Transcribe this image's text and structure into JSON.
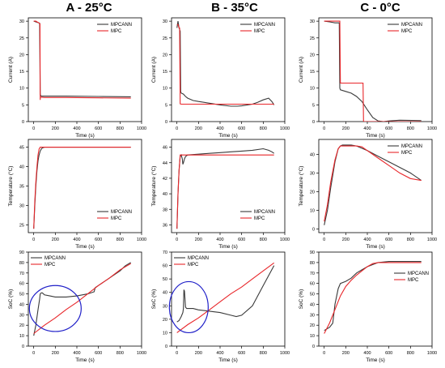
{
  "column_titles": [
    "A - 25°C",
    "B - 35°C",
    "C - 0°C"
  ],
  "colors": {
    "MPCANN": "#3a3a3a",
    "MPC": "#e8262a",
    "highlight": "#1f1fc8"
  },
  "chart_data": [
    {
      "id": "A-current",
      "type": "line",
      "xlabel": "Time (s)",
      "ylabel": "Current (A)",
      "xlim": [
        -50,
        1000
      ],
      "ylim": [
        0,
        31
      ],
      "xticks": [
        0,
        200,
        400,
        600,
        800,
        1000
      ],
      "yticks": [
        0,
        5,
        10,
        15,
        20,
        25,
        30
      ],
      "legend_position": "top-right",
      "series": [
        {
          "name": "MPCANN",
          "color": "#3a3a3a",
          "x": [
            0,
            20,
            40,
            55,
            60,
            62,
            65,
            70,
            100,
            300,
            600,
            900
          ],
          "y": [
            30,
            29.8,
            29.6,
            29.4,
            8.5,
            7.8,
            7.8,
            7.6,
            7.6,
            7.6,
            7.5,
            7.4
          ]
        },
        {
          "name": "MPC",
          "color": "#e8262a",
          "x": [
            0,
            20,
            45,
            55,
            58,
            60,
            62,
            70,
            100,
            300,
            600,
            900
          ],
          "y": [
            30,
            30,
            29.5,
            29.3,
            29.2,
            6.5,
            7.3,
            7.3,
            7.2,
            7.2,
            7.1,
            7.0
          ]
        }
      ]
    },
    {
      "id": "B-current",
      "type": "line",
      "xlabel": "Time (s)",
      "ylabel": "Current (A)",
      "xlim": [
        -50,
        1000
      ],
      "ylim": [
        0,
        31
      ],
      "xticks": [
        0,
        200,
        400,
        600,
        800,
        1000
      ],
      "yticks": [
        0,
        5,
        10,
        15,
        20,
        25,
        30
      ],
      "legend_position": "top-right",
      "series": [
        {
          "name": "MPCANN",
          "color": "#3a3a3a",
          "x": [
            0,
            10,
            20,
            30,
            35,
            40,
            60,
            80,
            100,
            150,
            200,
            300,
            400,
            500,
            560,
            600,
            700,
            750,
            800,
            850,
            880,
            900
          ],
          "y": [
            28,
            30,
            28,
            27,
            9,
            8.5,
            8.2,
            7.5,
            7,
            6.3,
            6,
            5.5,
            5,
            4.6,
            4.6,
            4.7,
            5.2,
            5.8,
            6.5,
            7,
            6,
            5
          ]
        },
        {
          "name": "MPC",
          "color": "#e8262a",
          "x": [
            0,
            10,
            20,
            25,
            30,
            40,
            100,
            300,
            600,
            900
          ],
          "y": [
            29,
            29,
            28,
            28,
            5.3,
            5.2,
            5.2,
            5.2,
            5.2,
            5.2
          ]
        }
      ]
    },
    {
      "id": "C-current",
      "type": "line",
      "xlabel": "Time (s)",
      "ylabel": "Current (A)",
      "xlim": [
        -50,
        1000
      ],
      "ylim": [
        0,
        31
      ],
      "xticks": [
        0,
        200,
        400,
        600,
        800,
        1000
      ],
      "yticks": [
        0,
        5,
        10,
        15,
        20,
        25,
        30
      ],
      "legend_position": "top-right",
      "series": [
        {
          "name": "MPCANN",
          "color": "#3a3a3a",
          "x": [
            0,
            50,
            100,
            140,
            145,
            150,
            200,
            250,
            300,
            350,
            400,
            450,
            500,
            550,
            600,
            700,
            900
          ],
          "y": [
            30,
            29.8,
            29.5,
            29.5,
            10,
            9.5,
            9,
            8.5,
            7.5,
            6,
            3.5,
            1.2,
            0.2,
            0,
            0.2,
            0.4,
            0.3
          ]
        },
        {
          "name": "MPC",
          "color": "#e8262a",
          "x": [
            0,
            50,
            100,
            145,
            150,
            200,
            250,
            300,
            360,
            365,
            400,
            500,
            600,
            700,
            900
          ],
          "y": [
            30,
            30,
            30,
            30,
            11.5,
            11.5,
            11.5,
            11.5,
            11.5,
            0,
            0,
            0,
            0,
            0,
            0
          ]
        }
      ]
    },
    {
      "id": "A-temp",
      "type": "line",
      "xlabel": "Time (s)",
      "ylabel": "Temperature (°C)",
      "xlim": [
        -50,
        1000
      ],
      "ylim": [
        23,
        47
      ],
      "xticks": [
        0,
        200,
        400,
        600,
        800,
        1000
      ],
      "yticks": [
        25,
        30,
        35,
        40,
        45
      ],
      "legend_position": "bottom-right",
      "series": [
        {
          "name": "MPCANN",
          "color": "#3a3a3a",
          "x": [
            0,
            10,
            20,
            30,
            40,
            50,
            60,
            70,
            80,
            100,
            150,
            300,
            600,
            900
          ],
          "y": [
            24,
            30,
            35,
            39,
            41.5,
            43,
            44,
            44.5,
            44.8,
            45,
            45,
            45,
            45,
            45
          ]
        },
        {
          "name": "MPC",
          "color": "#e8262a",
          "x": [
            0,
            10,
            20,
            30,
            40,
            50,
            60,
            65,
            70,
            100,
            300,
            600,
            900
          ],
          "y": [
            24,
            31,
            36,
            40,
            43,
            44.5,
            45,
            45,
            45,
            45,
            45,
            45,
            45
          ]
        }
      ]
    },
    {
      "id": "B-temp",
      "type": "line",
      "xlabel": "Time (s)",
      "ylabel": "Temperature (°C)",
      "xlim": [
        -50,
        1000
      ],
      "ylim": [
        35,
        47
      ],
      "xticks": [
        0,
        200,
        400,
        600,
        800,
        1000
      ],
      "yticks": [
        36,
        38,
        40,
        42,
        44,
        46
      ],
      "legend_position": "bottom-right",
      "series": [
        {
          "name": "MPCANN",
          "color": "#3a3a3a",
          "x": [
            0,
            10,
            20,
            30,
            40,
            50,
            55,
            60,
            70,
            80,
            100,
            200,
            300,
            400,
            500,
            600,
            700,
            800,
            850,
            880,
            900
          ],
          "y": [
            35.5,
            40,
            43,
            44.8,
            45,
            44.5,
            43.8,
            44,
            44.5,
            44.8,
            45,
            45.1,
            45.2,
            45.3,
            45.4,
            45.5,
            45.6,
            45.8,
            45.6,
            45.4,
            45.2
          ]
        },
        {
          "name": "MPC",
          "color": "#e8262a",
          "x": [
            0,
            10,
            20,
            30,
            40,
            100,
            300,
            600,
            900
          ],
          "y": [
            35.5,
            40,
            43,
            45,
            45,
            45,
            45,
            45,
            45
          ]
        }
      ]
    },
    {
      "id": "C-temp",
      "type": "line",
      "xlabel": "Time (s)",
      "ylabel": "Temperature (°C)",
      "xlim": [
        -50,
        1000
      ],
      "ylim": [
        -2,
        48
      ],
      "xticks": [
        0,
        200,
        400,
        600,
        800,
        1000
      ],
      "yticks": [
        0,
        10,
        20,
        30,
        40
      ],
      "legend_position": "top-right",
      "series": [
        {
          "name": "MPCANN",
          "color": "#3a3a3a",
          "x": [
            0,
            30,
            60,
            100,
            130,
            150,
            170,
            200,
            250,
            300,
            400,
            500,
            600,
            700,
            800,
            900
          ],
          "y": [
            2,
            10,
            22,
            36,
            43,
            44.5,
            45,
            45,
            45,
            44.5,
            42,
            39,
            36,
            33,
            30,
            26
          ]
        },
        {
          "name": "MPC",
          "color": "#e8262a",
          "x": [
            0,
            30,
            60,
            100,
            130,
            150,
            170,
            200,
            300,
            350,
            400,
            500,
            600,
            700,
            800,
            900
          ],
          "y": [
            4,
            13,
            25,
            37,
            43,
            44.5,
            44.5,
            44.5,
            44.5,
            44,
            42,
            38,
            34,
            30,
            27,
            26
          ]
        }
      ]
    },
    {
      "id": "A-soc",
      "type": "line",
      "xlabel": "Time (s)",
      "ylabel": "SoC (%)",
      "xlim": [
        -50,
        1000
      ],
      "ylim": [
        0,
        90
      ],
      "xticks": [
        0,
        200,
        400,
        600,
        800,
        1000
      ],
      "yticks": [
        0,
        10,
        20,
        30,
        40,
        50,
        60,
        70,
        80,
        90
      ],
      "legend_position": "top-left",
      "series": [
        {
          "name": "MPCANN",
          "color": "#3a3a3a",
          "x": [
            0,
            20,
            40,
            55,
            60,
            70,
            80,
            100,
            150,
            200,
            300,
            400,
            500,
            560,
            570,
            600,
            700,
            800,
            850,
            900
          ],
          "y": [
            10,
            20,
            35,
            45,
            50,
            51,
            51,
            49,
            48,
            47,
            47,
            48,
            50,
            52,
            56,
            58,
            65,
            72,
            77,
            80
          ]
        },
        {
          "name": "MPC",
          "color": "#e8262a",
          "x": [
            0,
            100,
            200,
            300,
            400,
            500,
            600,
            700,
            800,
            900
          ],
          "y": [
            12,
            20,
            27,
            35,
            42,
            50,
            58,
            65,
            73,
            79
          ]
        }
      ],
      "highlight_ellipse": {
        "cx": 200,
        "cy": 36,
        "rx": 240,
        "ry": 22
      }
    },
    {
      "id": "B-soc",
      "type": "line",
      "xlabel": "Time (s)",
      "ylabel": "SoC (%)",
      "xlim": [
        -50,
        1000
      ],
      "ylim": [
        0,
        70
      ],
      "xticks": [
        0,
        200,
        400,
        600,
        800,
        1000
      ],
      "yticks": [
        0,
        10,
        20,
        30,
        40,
        50,
        60,
        70
      ],
      "legend_position": "top-left",
      "series": [
        {
          "name": "MPCANN",
          "color": "#3a3a3a",
          "x": [
            0,
            20,
            40,
            55,
            60,
            65,
            70,
            80,
            90,
            100,
            150,
            200,
            300,
            400,
            500,
            550,
            600,
            700,
            800,
            900
          ],
          "y": [
            18,
            19,
            22,
            25,
            28,
            42,
            41,
            29,
            28,
            28,
            28,
            27,
            26,
            25,
            23,
            22,
            23,
            30,
            45,
            60
          ]
        },
        {
          "name": "MPC",
          "color": "#e8262a",
          "x": [
            0,
            100,
            200,
            300,
            400,
            500,
            600,
            700,
            800,
            900
          ],
          "y": [
            10,
            16,
            21,
            27,
            33,
            39,
            44,
            50,
            56,
            62
          ]
        }
      ],
      "highlight_ellipse": {
        "cx": 110,
        "cy": 29,
        "rx": 180,
        "ry": 19
      }
    },
    {
      "id": "C-soc",
      "type": "line",
      "xlabel": "Time (s)",
      "ylabel": "SoC (%)",
      "xlim": [
        -50,
        1000
      ],
      "ylim": [
        0,
        90
      ],
      "xticks": [
        0,
        200,
        400,
        600,
        800,
        1000
      ],
      "yticks": [
        0,
        10,
        20,
        30,
        40,
        50,
        60,
        70,
        80,
        90
      ],
      "legend_position": "right",
      "series": [
        {
          "name": "MPCANN",
          "color": "#3a3a3a",
          "x": [
            0,
            50,
            80,
            100,
            130,
            150,
            200,
            250,
            300,
            350,
            400,
            500,
            600,
            700,
            800,
            900
          ],
          "y": [
            15,
            18,
            22,
            40,
            55,
            60,
            62,
            65,
            70,
            73,
            76,
            80,
            81,
            81,
            81,
            81
          ]
        },
        {
          "name": "MPC",
          "color": "#e8262a",
          "x": [
            0,
            50,
            100,
            150,
            200,
            250,
            300,
            350,
            400,
            450,
            500,
            600,
            700,
            800,
            900
          ],
          "y": [
            12,
            22,
            35,
            48,
            57,
            63,
            68,
            72,
            76,
            79,
            80,
            80,
            80,
            80,
            80
          ]
        }
      ]
    }
  ]
}
